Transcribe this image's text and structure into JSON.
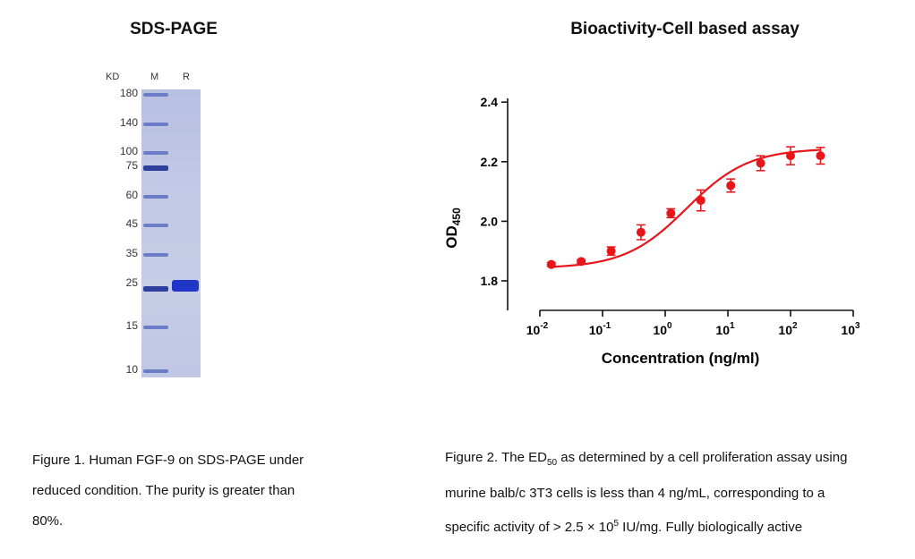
{
  "left_panel": {
    "title": "SDS-PAGE",
    "units_label": "KD",
    "lane_labels": {
      "marker": "M",
      "reduced": "R"
    },
    "markers_kd": [
      "180",
      "140",
      "100",
      "75",
      "60",
      "45",
      "35",
      "25",
      "15",
      "10"
    ],
    "colors": {
      "gel": "#c5cbe6",
      "ladder": "#6c7dc8",
      "band": "#1f36c8"
    },
    "caption_lines": [
      "Figure 1. Human FGF-9 on SDS-PAGE under",
      "reduced condition. The purity is greater than",
      "80%."
    ]
  },
  "right_panel": {
    "title": "Bioactivity-Cell based assay",
    "caption": {
      "line1_pre": "Figure 2. The ED",
      "line1_sub": "50",
      "line1_post": " as determined by a cell proliferation assay using",
      "line2": "murine balb/c 3T3 cells is less than 4 ng/mL, corresponding to a",
      "line3_pre": "specific activity of > 2.5 × 10",
      "line3_sup": "5",
      "line3_post": " IU/mg. Fully biologically active"
    }
  },
  "chart_data": {
    "type": "scatter",
    "xscale": "log",
    "xlabel": "Concentration (ng/ml)",
    "ylabel": "OD",
    "ylabel_sub": "450",
    "xlim": [
      0.01,
      1000
    ],
    "ylim": [
      1.7,
      2.4
    ],
    "xticks": [
      {
        "base": "10",
        "exp": "-2"
      },
      {
        "base": "10",
        "exp": "-1"
      },
      {
        "base": "10",
        "exp": "0"
      },
      {
        "base": "10",
        "exp": "1"
      },
      {
        "base": "10",
        "exp": "2"
      },
      {
        "base": "10",
        "exp": "3"
      }
    ],
    "yticks": [
      "1.8",
      "2.0",
      "2.2",
      "2.4"
    ],
    "color": "#e8161b",
    "grid": false,
    "series": [
      {
        "x": [
          0.0152,
          0.0457,
          0.137,
          0.41,
          1.23,
          3.7,
          11.1,
          33.3,
          100,
          300
        ],
        "y": [
          1.855,
          1.865,
          1.9,
          1.963,
          2.027,
          2.07,
          2.12,
          2.195,
          2.22,
          2.22
        ],
        "err": [
          0.006,
          0.006,
          0.014,
          0.025,
          0.015,
          0.035,
          0.022,
          0.025,
          0.03,
          0.028
        ]
      }
    ]
  }
}
